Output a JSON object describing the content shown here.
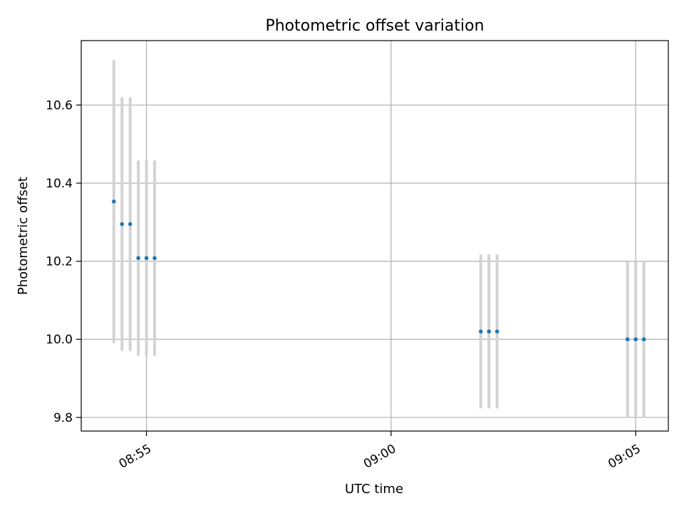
{
  "chart_data": {
    "type": "scatter",
    "title": "Photometric offset variation",
    "xlabel": "UTC time",
    "ylabel": "Photometric offset",
    "x_axis": {
      "type": "time",
      "range": [
        "08:53:40",
        "09:05:40"
      ],
      "ticks": [
        "08:55",
        "09:00",
        "09:05"
      ]
    },
    "y_axis": {
      "range": [
        9.765,
        10.765
      ],
      "ticks": [
        9.8,
        10.0,
        10.2,
        10.4,
        10.6
      ],
      "tick_labels": [
        "9.8",
        "10.0",
        "10.2",
        "10.4",
        "10.6"
      ]
    },
    "grid": true,
    "legend": "none",
    "colors": {
      "points": "#1f77b4",
      "error_bars": "#d3d3d3",
      "grid": "#b0b0b0"
    },
    "series": [
      {
        "points": [
          {
            "t": "08:54:20",
            "y": 10.353,
            "y_low": 9.99,
            "y_high": 10.715
          },
          {
            "t": "08:54:30",
            "y": 10.295,
            "y_low": 9.97,
            "y_high": 10.62
          },
          {
            "t": "08:54:40",
            "y": 10.295,
            "y_low": 9.97,
            "y_high": 10.62
          },
          {
            "t": "08:54:50",
            "y": 10.208,
            "y_low": 9.958,
            "y_high": 10.458
          },
          {
            "t": "08:55:00",
            "y": 10.208,
            "y_low": 9.958,
            "y_high": 10.458
          },
          {
            "t": "08:55:10",
            "y": 10.208,
            "y_low": 9.958,
            "y_high": 10.458
          },
          {
            "t": "09:01:50",
            "y": 10.02,
            "y_low": 9.823,
            "y_high": 10.217
          },
          {
            "t": "09:02:00",
            "y": 10.02,
            "y_low": 9.823,
            "y_high": 10.217
          },
          {
            "t": "09:02:10",
            "y": 10.02,
            "y_low": 9.823,
            "y_high": 10.217
          },
          {
            "t": "09:04:50",
            "y": 10.0,
            "y_low": 9.8,
            "y_high": 10.2
          },
          {
            "t": "09:05:00",
            "y": 10.0,
            "y_low": 9.8,
            "y_high": 10.2
          },
          {
            "t": "09:05:10",
            "y": 10.0,
            "y_low": 9.8,
            "y_high": 10.2
          }
        ]
      }
    ]
  }
}
